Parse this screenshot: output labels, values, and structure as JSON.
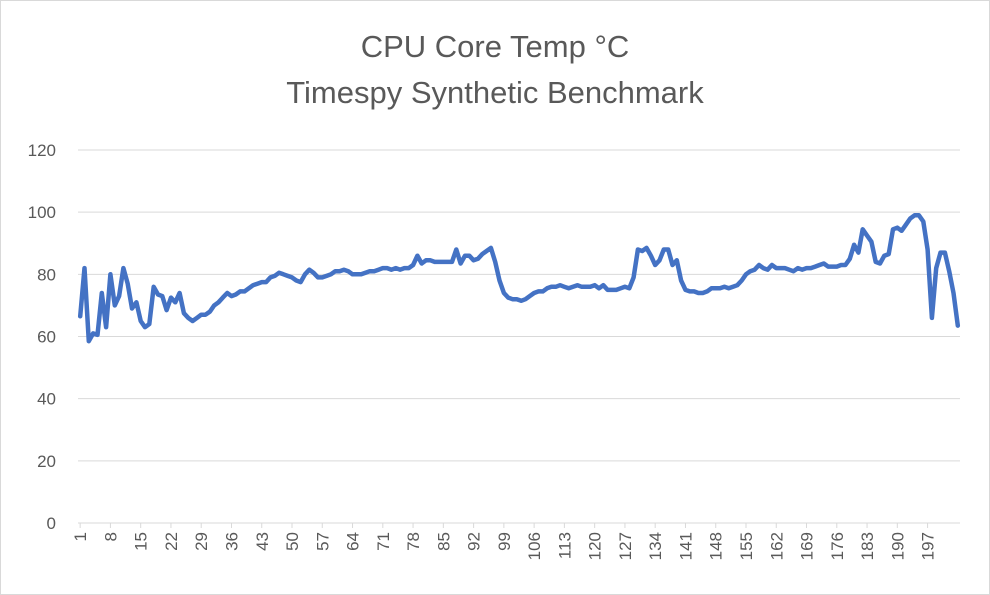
{
  "chart_data": {
    "type": "line",
    "title": "CPU Core Temp °C",
    "subtitle": "Timespy Synthetic Benchmark",
    "xlabel": "",
    "ylabel": "",
    "ylim": [
      0,
      120
    ],
    "y_ticks": [
      0,
      20,
      40,
      60,
      80,
      100,
      120
    ],
    "x_range": [
      1,
      200
    ],
    "x_tick_labels": [
      "1",
      "8",
      "15",
      "22",
      "29",
      "36",
      "43",
      "50",
      "57",
      "64",
      "71",
      "78",
      "85",
      "92",
      "99",
      "106",
      "113",
      "120",
      "127",
      "134",
      "141",
      "148",
      "155",
      "162",
      "169",
      "176",
      "183",
      "190",
      "197"
    ],
    "grid": true,
    "legend": "none",
    "series_color": "#4472C4",
    "series": [
      {
        "points": [
          [
            1,
            66.5
          ],
          [
            2,
            82
          ],
          [
            3,
            58.5
          ],
          [
            4,
            61
          ],
          [
            5,
            60.5
          ],
          [
            6,
            74
          ],
          [
            7,
            63
          ],
          [
            8,
            80
          ],
          [
            9,
            70
          ],
          [
            10,
            73
          ],
          [
            11,
            82
          ],
          [
            12,
            77
          ],
          [
            13,
            69
          ],
          [
            14,
            71
          ],
          [
            15,
            65
          ],
          [
            16,
            63
          ],
          [
            17,
            64
          ],
          [
            18,
            76
          ],
          [
            19,
            73.5
          ],
          [
            20,
            73
          ],
          [
            21,
            68.5
          ],
          [
            22,
            72.5
          ],
          [
            23,
            71
          ],
          [
            24,
            74
          ],
          [
            25,
            67.5
          ],
          [
            26,
            66
          ],
          [
            27,
            65
          ],
          [
            28,
            66
          ],
          [
            29,
            67
          ],
          [
            30,
            67
          ],
          [
            31,
            68
          ],
          [
            32,
            70
          ],
          [
            33,
            71
          ],
          [
            34,
            72.5
          ],
          [
            35,
            74
          ],
          [
            36,
            73
          ],
          [
            37,
            73.5
          ],
          [
            38,
            74.5
          ],
          [
            39,
            74.5
          ],
          [
            40,
            75.5
          ],
          [
            41,
            76.5
          ],
          [
            42,
            77
          ],
          [
            43,
            77.5
          ],
          [
            44,
            77.5
          ],
          [
            45,
            79
          ],
          [
            46,
            79.5
          ],
          [
            47,
            80.5
          ],
          [
            48,
            80
          ],
          [
            49,
            79.5
          ],
          [
            50,
            79
          ],
          [
            51,
            78
          ],
          [
            52,
            77.5
          ],
          [
            53,
            80
          ],
          [
            54,
            81.5
          ],
          [
            55,
            80.5
          ],
          [
            56,
            79
          ],
          [
            57,
            79
          ],
          [
            58,
            79.5
          ],
          [
            59,
            80
          ],
          [
            60,
            81
          ],
          [
            61,
            81
          ],
          [
            62,
            81.5
          ],
          [
            63,
            81
          ],
          [
            64,
            80
          ],
          [
            65,
            80
          ],
          [
            66,
            80
          ],
          [
            67,
            80.5
          ],
          [
            68,
            81
          ],
          [
            69,
            81
          ],
          [
            70,
            81.5
          ],
          [
            71,
            82
          ],
          [
            72,
            82
          ],
          [
            73,
            81.5
          ],
          [
            74,
            82
          ],
          [
            75,
            81.5
          ],
          [
            76,
            82
          ],
          [
            77,
            82
          ],
          [
            78,
            83
          ],
          [
            79,
            86
          ],
          [
            80,
            83.5
          ],
          [
            81,
            84.5
          ],
          [
            82,
            84.5
          ],
          [
            83,
            84
          ],
          [
            84,
            84
          ],
          [
            85,
            84
          ],
          [
            86,
            84
          ],
          [
            87,
            84
          ],
          [
            88,
            88
          ],
          [
            89,
            83.5
          ],
          [
            90,
            86
          ],
          [
            91,
            86
          ],
          [
            92,
            84.5
          ],
          [
            93,
            85
          ],
          [
            94,
            86.5
          ],
          [
            95,
            87.5
          ],
          [
            96,
            88.5
          ],
          [
            97,
            84
          ],
          [
            98,
            78
          ],
          [
            99,
            74
          ],
          [
            100,
            72.5
          ],
          [
            101,
            72
          ],
          [
            102,
            72
          ],
          [
            103,
            71.5
          ],
          [
            104,
            72
          ],
          [
            105,
            73
          ],
          [
            106,
            74
          ],
          [
            107,
            74.5
          ],
          [
            108,
            74.5
          ],
          [
            109,
            75.5
          ],
          [
            110,
            76
          ],
          [
            111,
            76
          ],
          [
            112,
            76.5
          ],
          [
            113,
            76
          ],
          [
            114,
            75.5
          ],
          [
            115,
            76
          ],
          [
            116,
            76.5
          ],
          [
            117,
            76
          ],
          [
            118,
            76
          ],
          [
            119,
            76
          ],
          [
            120,
            76.5
          ],
          [
            121,
            75.5
          ],
          [
            122,
            76.5
          ],
          [
            123,
            75
          ],
          [
            124,
            75
          ],
          [
            125,
            75
          ],
          [
            126,
            75.5
          ],
          [
            127,
            76
          ],
          [
            128,
            75.5
          ],
          [
            129,
            79
          ],
          [
            130,
            88
          ],
          [
            131,
            87.5
          ],
          [
            132,
            88.5
          ],
          [
            133,
            86
          ],
          [
            134,
            83
          ],
          [
            135,
            84.5
          ],
          [
            136,
            88
          ],
          [
            137,
            88
          ],
          [
            138,
            83
          ],
          [
            139,
            84.5
          ],
          [
            140,
            78
          ],
          [
            141,
            75
          ],
          [
            142,
            74.5
          ],
          [
            143,
            74.5
          ],
          [
            144,
            74
          ],
          [
            145,
            74
          ],
          [
            146,
            74.5
          ],
          [
            147,
            75.5
          ],
          [
            148,
            75.5
          ],
          [
            149,
            75.5
          ],
          [
            150,
            76
          ],
          [
            151,
            75.5
          ],
          [
            152,
            76
          ],
          [
            153,
            76.5
          ],
          [
            154,
            78
          ],
          [
            155,
            80
          ],
          [
            156,
            81
          ],
          [
            157,
            81.5
          ],
          [
            158,
            83
          ],
          [
            159,
            82
          ],
          [
            160,
            81.5
          ],
          [
            161,
            83
          ],
          [
            162,
            82
          ],
          [
            163,
            82
          ],
          [
            164,
            82
          ],
          [
            165,
            81.5
          ],
          [
            166,
            81
          ],
          [
            167,
            82
          ],
          [
            168,
            81.5
          ],
          [
            169,
            82
          ],
          [
            170,
            82
          ],
          [
            171,
            82.5
          ],
          [
            172,
            83
          ],
          [
            173,
            83.5
          ],
          [
            174,
            82.5
          ],
          [
            175,
            82.5
          ],
          [
            176,
            82.5
          ],
          [
            177,
            83
          ],
          [
            178,
            83
          ],
          [
            179,
            85
          ],
          [
            180,
            89.5
          ],
          [
            181,
            87
          ],
          [
            182,
            94.5
          ],
          [
            183,
            92.5
          ],
          [
            184,
            90.5
          ],
          [
            185,
            84
          ],
          [
            186,
            83.5
          ],
          [
            187,
            86
          ],
          [
            188,
            86.5
          ],
          [
            189,
            94.5
          ],
          [
            190,
            95
          ],
          [
            191,
            94
          ],
          [
            192,
            96
          ],
          [
            193,
            98
          ],
          [
            194,
            99
          ],
          [
            195,
            99
          ],
          [
            196,
            97
          ],
          [
            197,
            88
          ],
          [
            198,
            66
          ],
          [
            199,
            82
          ],
          [
            200,
            87
          ],
          [
            201,
            87
          ],
          [
            202,
            81
          ],
          [
            203,
            74
          ],
          [
            204,
            63.5
          ]
        ]
      }
    ]
  }
}
